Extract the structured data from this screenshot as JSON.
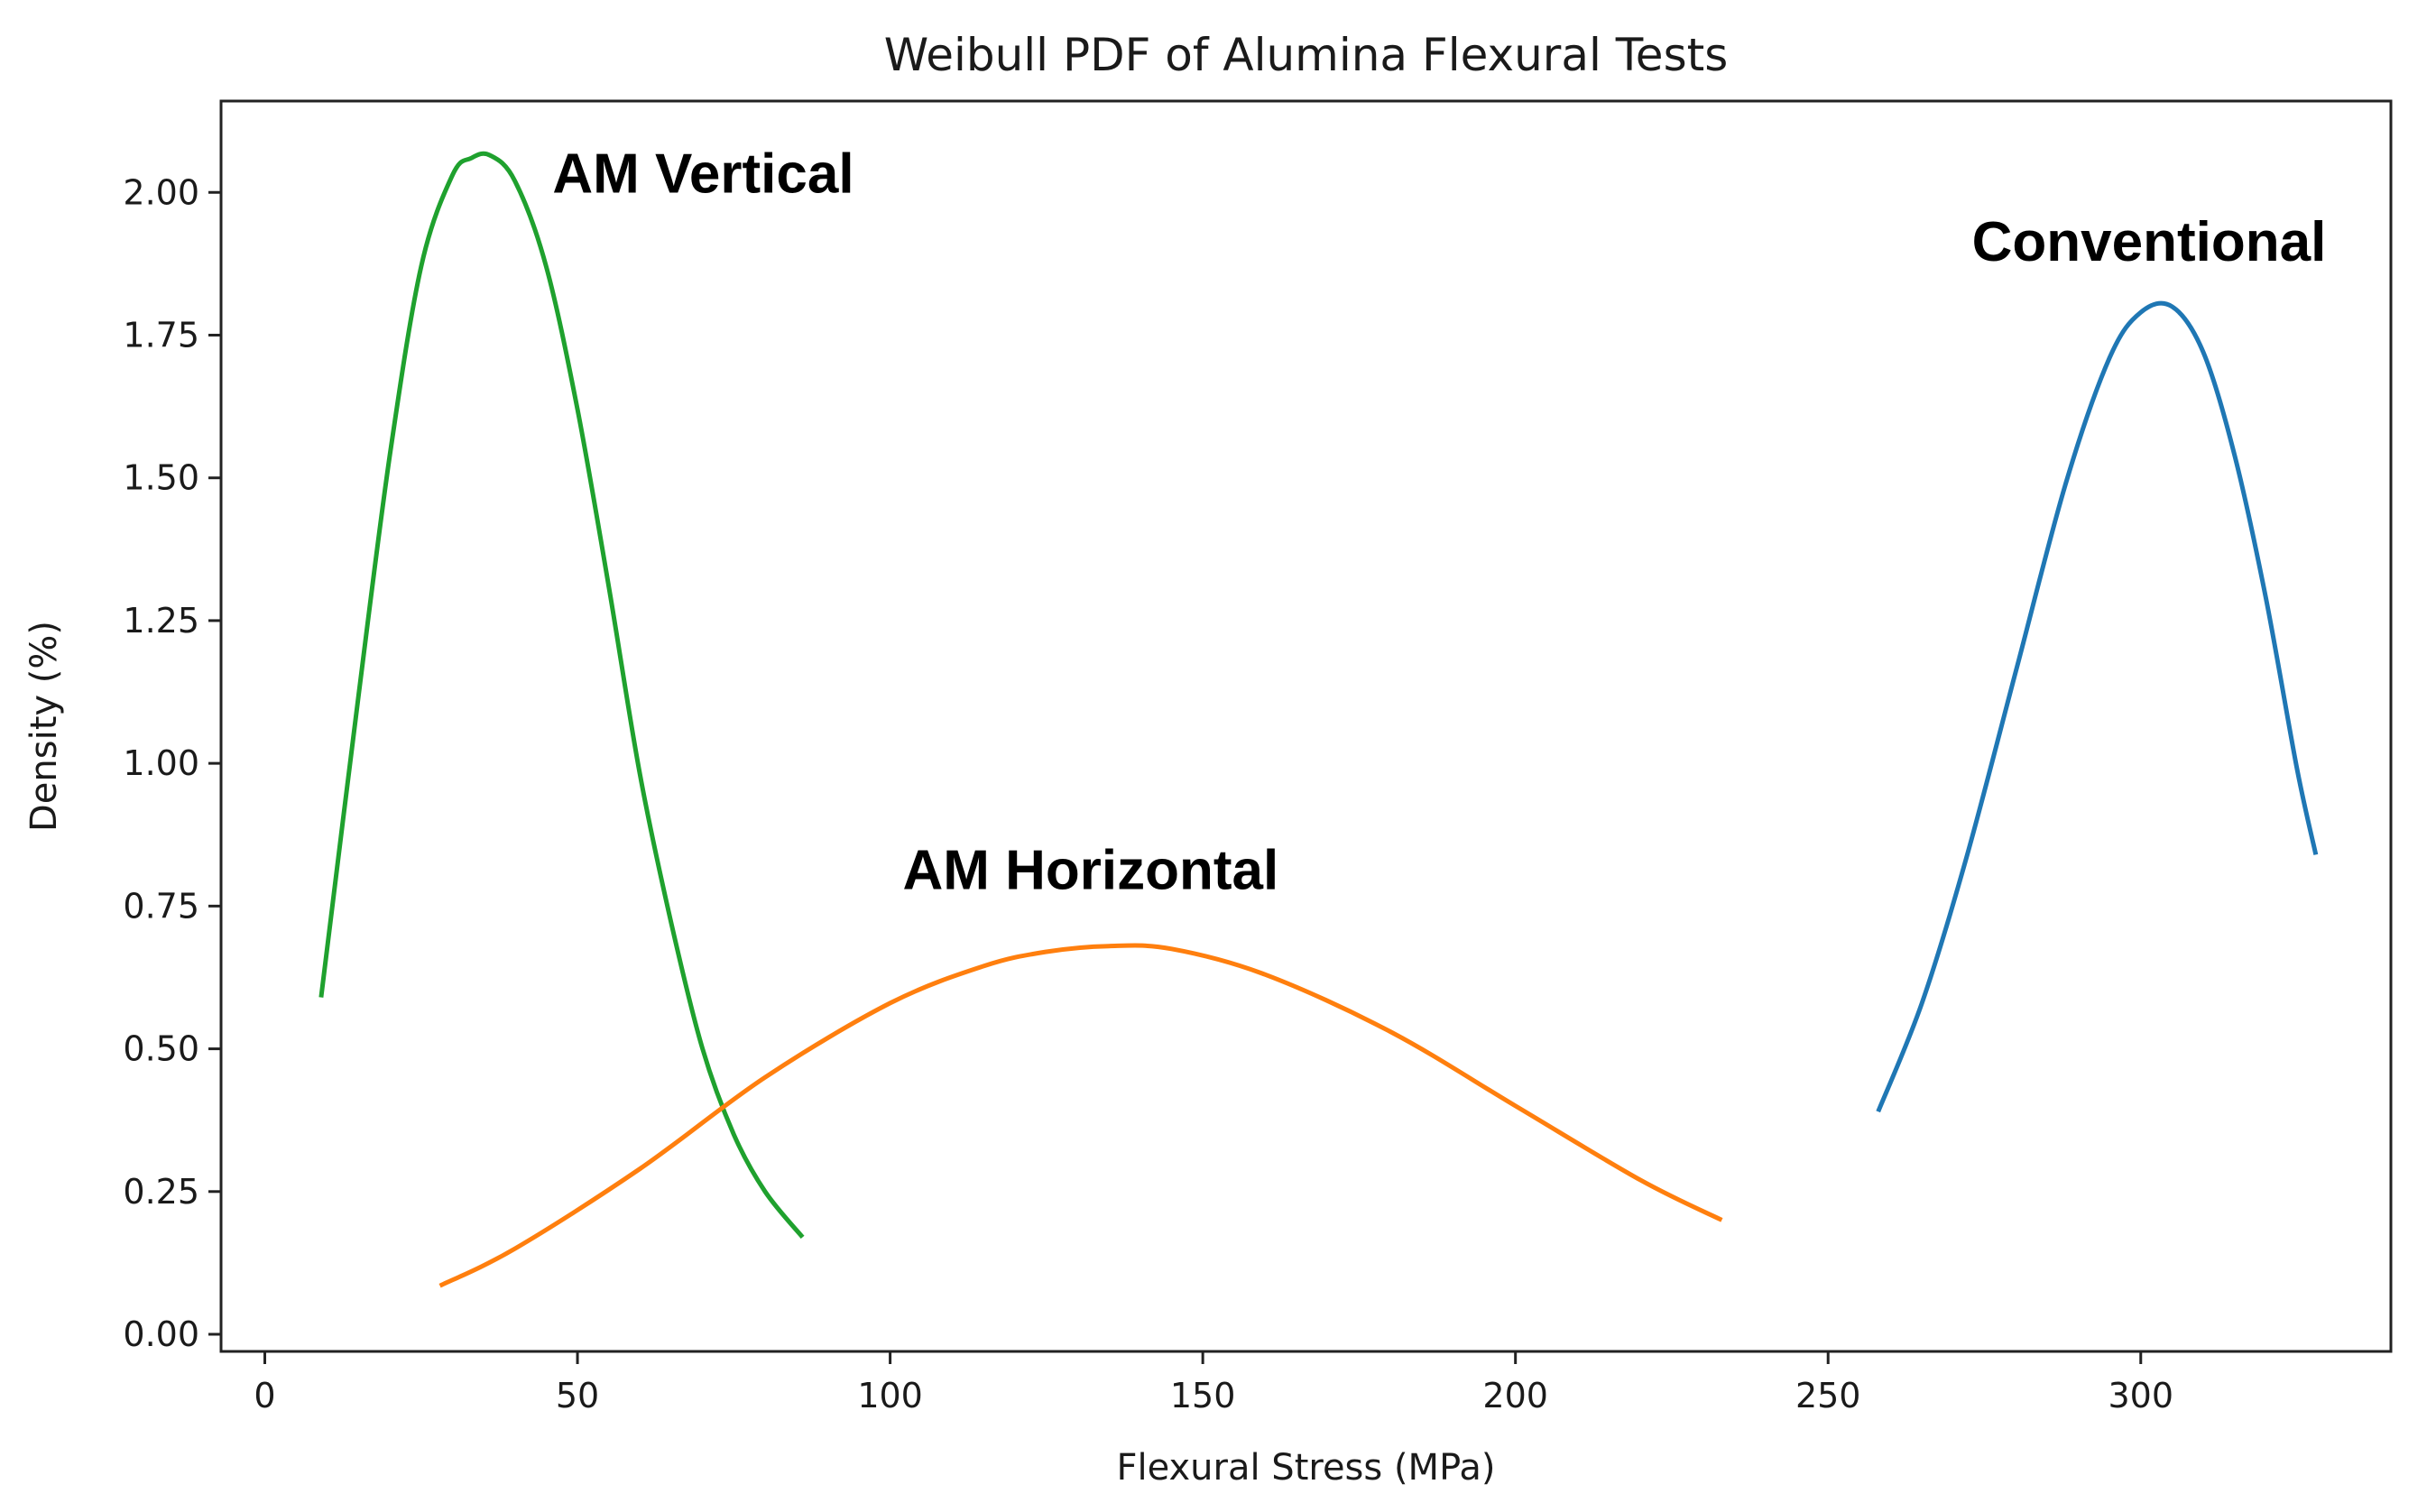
{
  "chart_data": {
    "type": "line",
    "title": "Weibull PDF of Alumina Flexural Tests",
    "xlabel": "Flexural Stress (MPa)",
    "ylabel": "Density (%)",
    "xlim": [
      -7,
      340
    ],
    "ylim": [
      -0.03,
      2.16
    ],
    "xticks": [
      0,
      50,
      100,
      150,
      200,
      250,
      300
    ],
    "xtick_labels": [
      "0",
      "50",
      "100",
      "150",
      "200",
      "250",
      "300"
    ],
    "yticks": [
      0.0,
      0.25,
      0.5,
      0.75,
      1.0,
      1.25,
      1.5,
      1.75,
      2.0
    ],
    "ytick_labels": [
      "0.00",
      "0.25",
      "0.50",
      "0.75",
      "1.00",
      "1.25",
      "1.50",
      "1.75",
      "2.00"
    ],
    "grid": false,
    "legend": "none",
    "series": [
      {
        "name": "AM Vertical",
        "color": "#1fa12e",
        "x": [
          9,
          15,
          20,
          25,
          30,
          33,
          36,
          40,
          45,
          50,
          55,
          60,
          65,
          70,
          75,
          80,
          86
        ],
        "y": [
          0.59,
          1.12,
          1.54,
          1.87,
          2.03,
          2.06,
          2.065,
          2.02,
          1.87,
          1.62,
          1.31,
          0.98,
          0.72,
          0.5,
          0.35,
          0.25,
          0.17
        ]
      },
      {
        "name": "AM Horizontal",
        "color": "#ff7f0e",
        "x": [
          28,
          40,
          60,
          80,
          100,
          115,
          125,
          135,
          145,
          160,
          180,
          200,
          220,
          233
        ],
        "y": [
          0.085,
          0.15,
          0.29,
          0.45,
          0.58,
          0.645,
          0.67,
          0.68,
          0.675,
          0.63,
          0.53,
          0.4,
          0.27,
          0.2
        ]
      },
      {
        "name": "Conventional",
        "color": "#1f77b4",
        "x": [
          258,
          265,
          272,
          280,
          288,
          295,
          300,
          305,
          310,
          315,
          320,
          325,
          328
        ],
        "y": [
          0.39,
          0.58,
          0.83,
          1.16,
          1.49,
          1.71,
          1.79,
          1.8,
          1.72,
          1.54,
          1.29,
          0.99,
          0.84
        ]
      }
    ],
    "annotations": [
      {
        "text": "AM Vertical",
        "x": 46,
        "y": 2.0
      },
      {
        "text": "AM Horizontal",
        "x": 102,
        "y": 0.78
      },
      {
        "text": "Conventional",
        "x": 273,
        "y": 1.88
      }
    ]
  }
}
